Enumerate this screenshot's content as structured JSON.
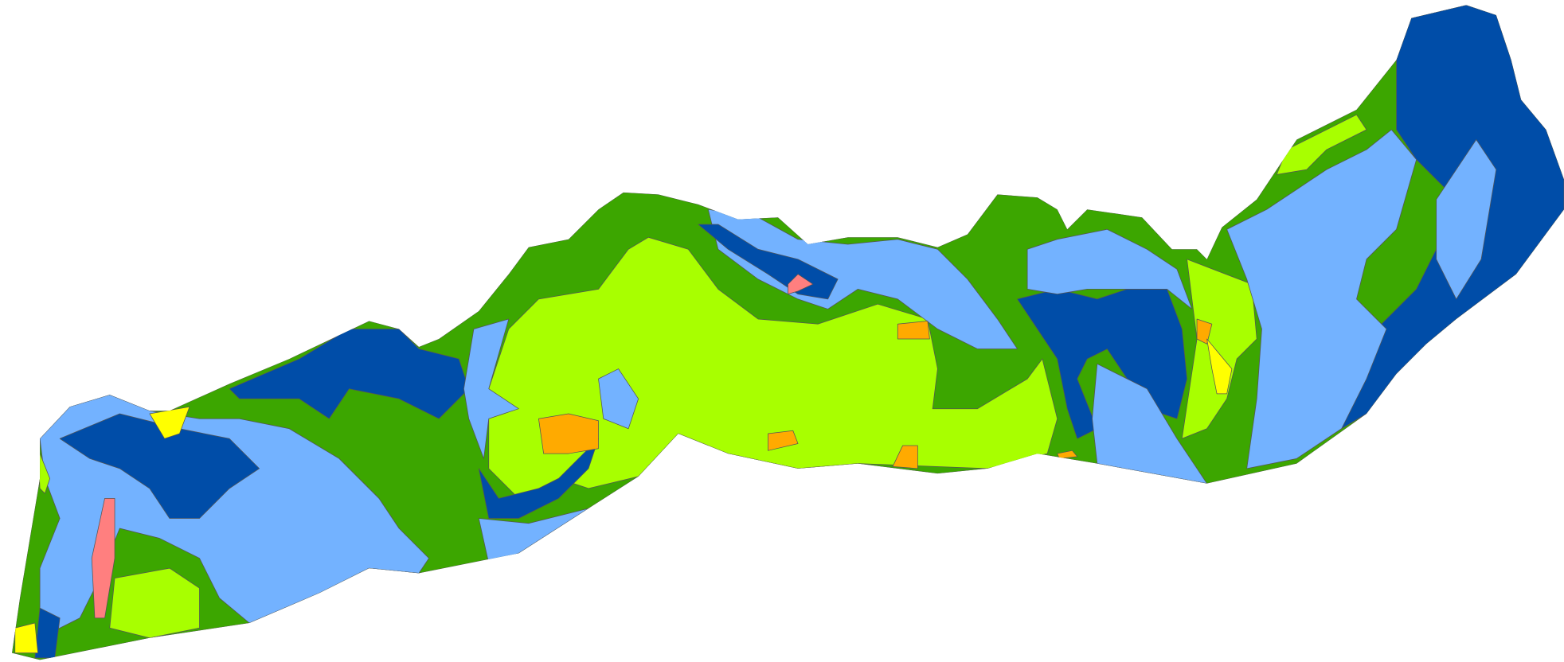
{
  "regions": [
    {
      "color": "#3ca600"
    },
    {
      "color": "#a8ff00"
    },
    {
      "color": "#a8ff00"
    },
    {
      "color": "#a8ff00"
    },
    {
      "color": "#a8ff00"
    },
    {
      "color": "#004da8"
    },
    {
      "color": "#73b2ff"
    },
    {
      "color": "#73b2ff"
    },
    {
      "color": "#004da8"
    },
    {
      "color": "#73b2ff"
    },
    {
      "color": "#73b2ff"
    },
    {
      "color": "#73b2ff"
    },
    {
      "color": "#004da8"
    },
    {
      "color": "#004da8"
    },
    {
      "color": "#73b2ff"
    },
    {
      "color": "#004da8"
    },
    {
      "color": "#004da8"
    },
    {
      "color": "#004da8"
    },
    {
      "color": "#73b2ff"
    },
    {
      "color": "#73b2ff"
    },
    {
      "color": "#73b2ff"
    },
    {
      "color": "#ffaa00"
    },
    {
      "color": "#ffaa00"
    },
    {
      "color": "#ffaa00"
    },
    {
      "color": "#ffaa00"
    },
    {
      "color": "#ffaa00"
    },
    {
      "color": "#ffaa00"
    },
    {
      "color": "#ffff00"
    },
    {
      "color": "#ffff00"
    },
    {
      "color": "#ffff00"
    },
    {
      "color": "#ff7f7f"
    },
    {
      "color": "#ff7f7f"
    },
    {
      "color": "#a8ff00"
    }
  ]
}
